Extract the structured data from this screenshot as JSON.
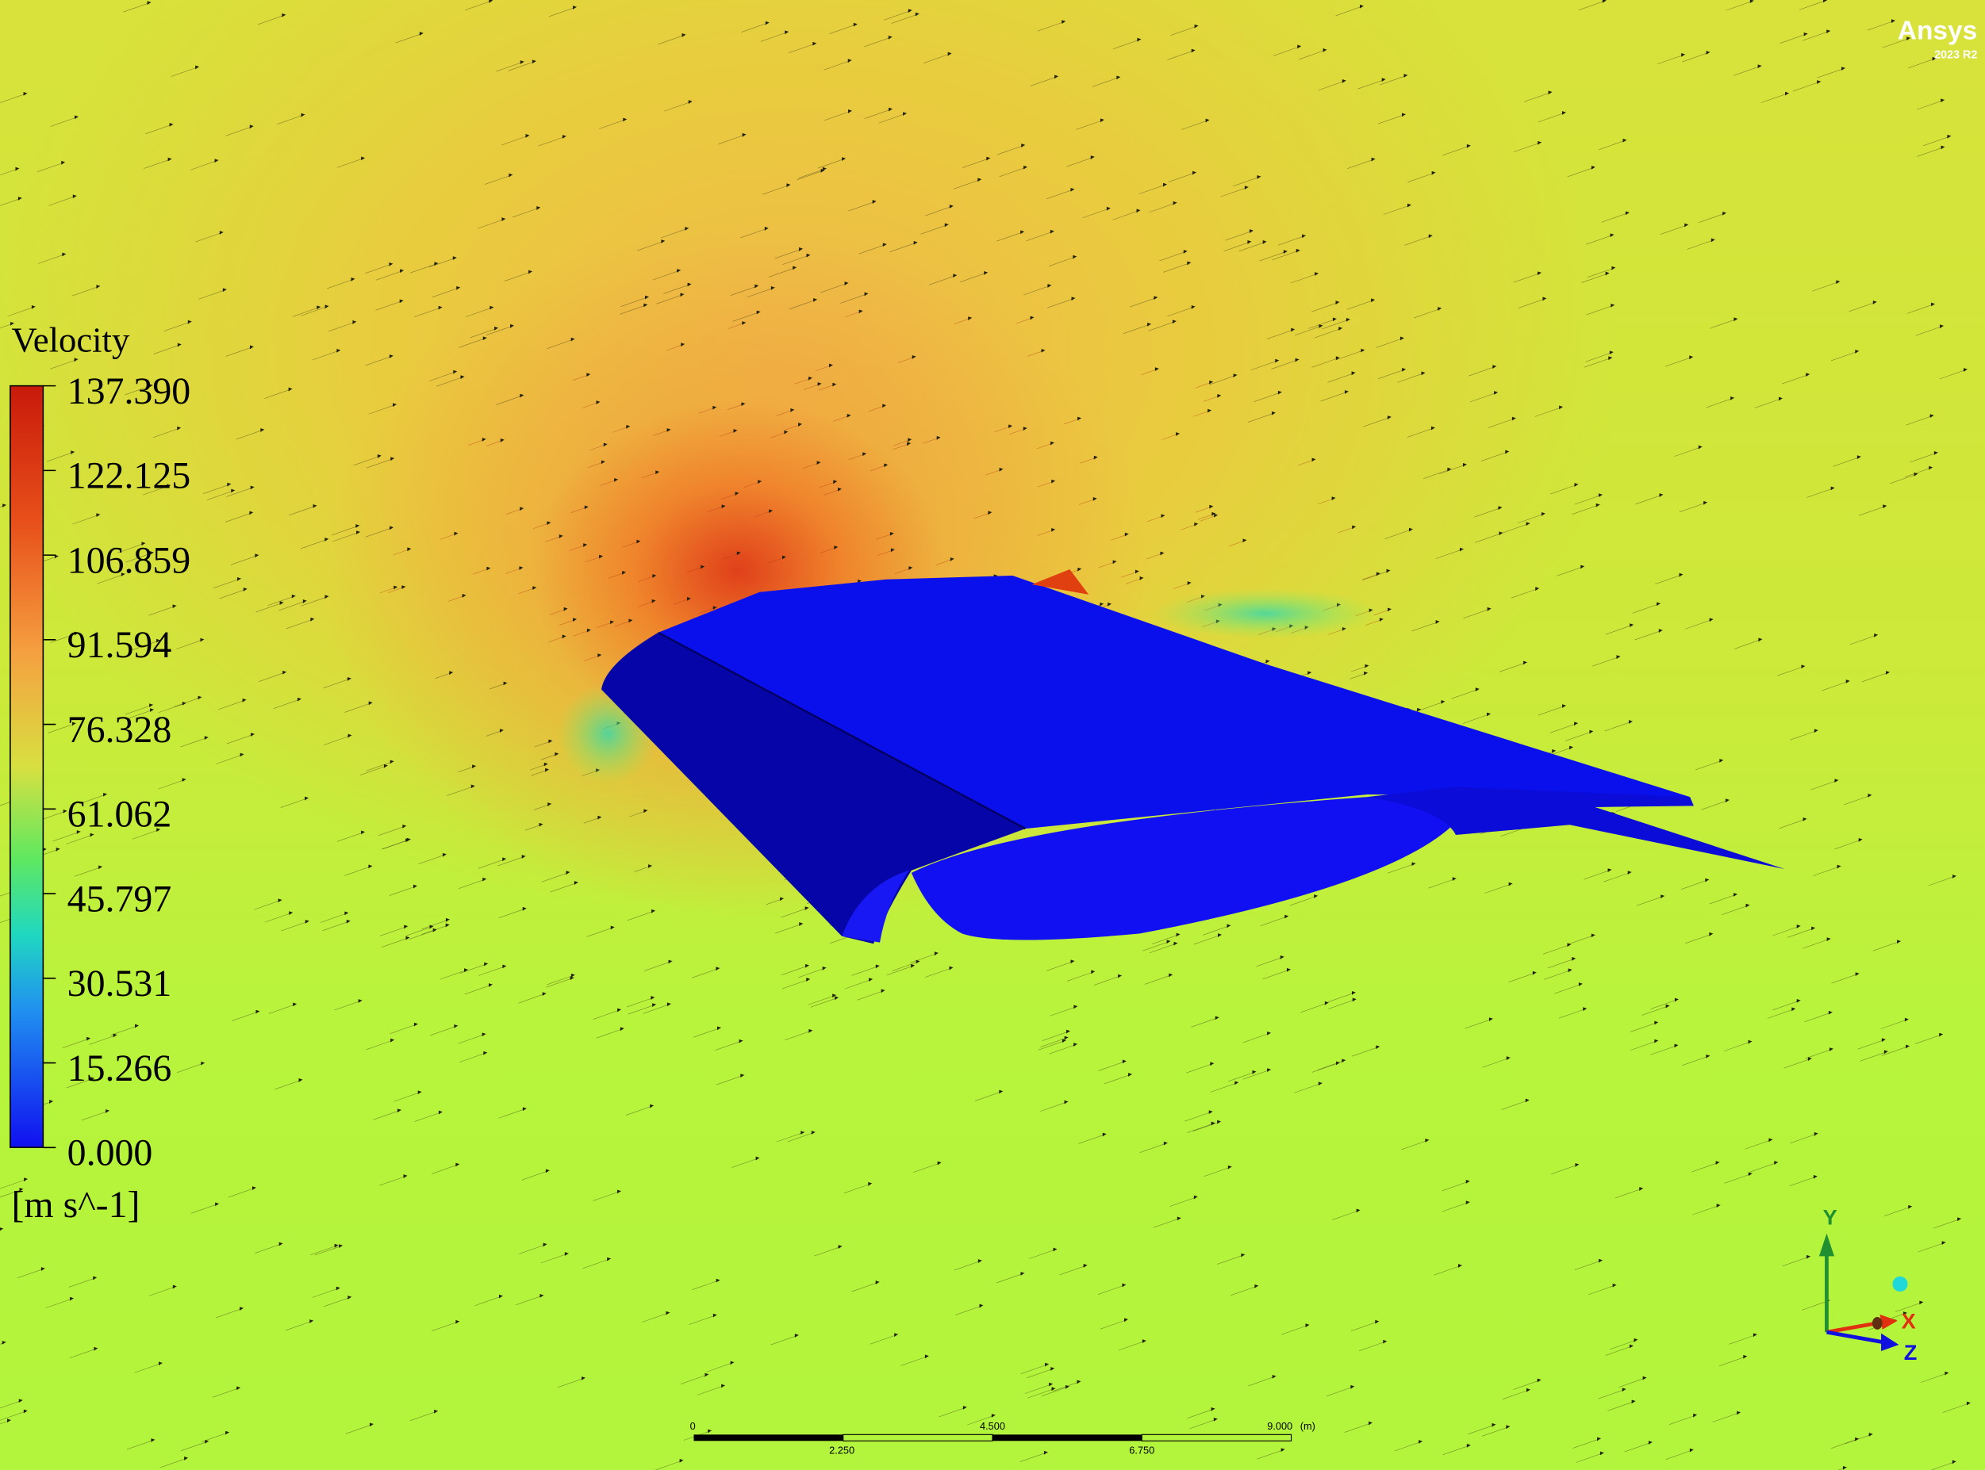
{
  "logo": {
    "brand": "Ansys",
    "version": "2023 R2"
  },
  "legend": {
    "title": "Velocity",
    "labels": [
      "137.390",
      "122.125",
      "106.859",
      "91.594",
      "76.328",
      "61.062",
      "45.797",
      "30.531",
      "15.266",
      "0.000"
    ],
    "unit": "[m s^-1]",
    "colormap": [
      "#c81a0a",
      "#e8501a",
      "#f5a040",
      "#d8e040",
      "#60e860",
      "#20d8c0",
      "#2090f0",
      "#1010f0"
    ]
  },
  "scale_bar": {
    "labels_top": [
      "0",
      "4.500",
      "9.000"
    ],
    "unit": "(m)",
    "labels_bottom": [
      "2.250",
      "6.750"
    ]
  },
  "axes_triad": {
    "x": "X",
    "y": "Y",
    "z": "Z",
    "colors": {
      "x": "#e03010",
      "y": "#209030",
      "z": "#1010e0",
      "sphere": "#20d8d8"
    }
  },
  "model": {
    "surface_color": "#0a10ec"
  }
}
